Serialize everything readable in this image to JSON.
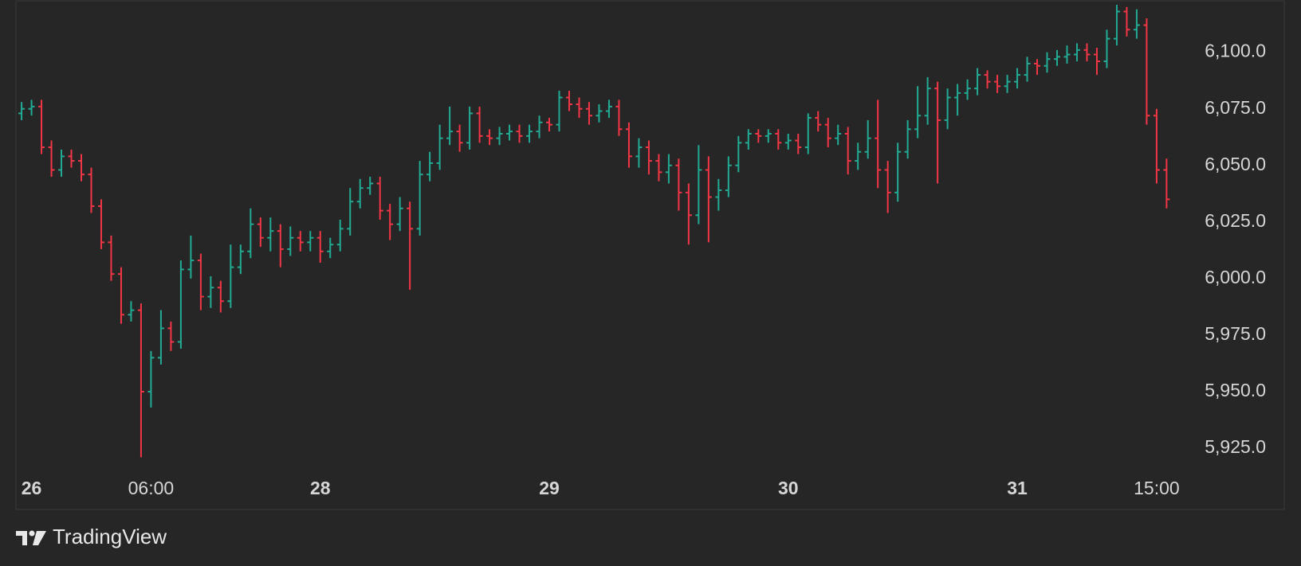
{
  "chart_data": {
    "type": "ohlc",
    "categories": [
      null,
      "26",
      null,
      null,
      null,
      null,
      null,
      null,
      null,
      null,
      null,
      null,
      null,
      "06:00",
      null,
      null,
      null,
      null,
      null,
      null,
      null,
      null,
      null,
      null,
      null,
      null,
      null,
      null,
      null,
      null,
      "28",
      null,
      null,
      null,
      null,
      null,
      null,
      null,
      null,
      null,
      null,
      null,
      null,
      null,
      null,
      null,
      null,
      null,
      null,
      null,
      null,
      null,
      null,
      "29",
      null,
      null,
      null,
      null,
      null,
      null,
      null,
      null,
      null,
      null,
      null,
      null,
      null,
      null,
      null,
      null,
      null,
      null,
      null,
      null,
      null,
      null,
      null,
      "30",
      null,
      null,
      null,
      null,
      null,
      null,
      null,
      null,
      null,
      null,
      null,
      null,
      null,
      null,
      null,
      null,
      null,
      null,
      null,
      null,
      null,
      null,
      "31",
      null,
      null,
      null,
      null,
      null,
      null,
      null,
      null,
      null,
      null,
      null,
      null,
      null,
      "15:00",
      null
    ],
    "open": [
      6073,
      6075,
      6076,
      6058,
      6048,
      6054,
      6052,
      6046,
      6032,
      6016,
      6002,
      5984,
      5986,
      5950,
      5965,
      5978,
      5972,
      6004,
      6008,
      5992,
      5996,
      5990,
      6005,
      6012,
      6024,
      6018,
      6021,
      6013,
      6018,
      6016,
      6018,
      6012,
      6015,
      6022,
      6034,
      6040,
      6042,
      6030,
      6024,
      6031,
      6022,
      6046,
      6051,
      6062,
      6065,
      6060,
      6073,
      6063,
      6062,
      6064,
      6065,
      6063,
      6065,
      6069,
      6068,
      6080,
      6077,
      6075,
      6072,
      6074,
      6076,
      6066,
      6054,
      6058,
      6052,
      6047,
      6050,
      6038,
      6028,
      6048,
      6036,
      6039,
      6050,
      6060,
      6064,
      6063,
      6064,
      6060,
      6061,
      6058,
      6071,
      6068,
      6062,
      6064,
      6052,
      6056,
      6062,
      6048,
      6038,
      6056,
      6066,
      6072,
      6084,
      6070,
      6080,
      6082,
      6084,
      6090,
      6087,
      6085,
      6087,
      6090,
      6095,
      6094,
      6097,
      6098,
      6099,
      6101,
      6099,
      6096,
      6106,
      6118,
      6110,
      6112,
      6072,
      6048
    ],
    "high": [
      6078,
      6079,
      6079,
      6061,
      6057,
      6057,
      6055,
      6049,
      6035,
      6019,
      6005,
      5990,
      5989,
      5968,
      5986,
      5981,
      6008,
      6019,
      6011,
      6001,
      5999,
      6015,
      6015,
      6031,
      6027,
      6027,
      6024,
      6023,
      6021,
      6021,
      6021,
      6018,
      6026,
      6040,
      6044,
      6045,
      6045,
      6033,
      6036,
      6034,
      6052,
      6056,
      6068,
      6076,
      6068,
      6076,
      6076,
      6066,
      6067,
      6068,
      6068,
      6068,
      6072,
      6071,
      6083,
      6083,
      6080,
      6078,
      6077,
      6079,
      6079,
      6069,
      6062,
      6061,
      6055,
      6055,
      6053,
      6042,
      6059,
      6054,
      6044,
      6054,
      6063,
      6066,
      6066,
      6066,
      6066,
      6064,
      6064,
      6073,
      6074,
      6071,
      6068,
      6067,
      6060,
      6070,
      6079,
      6052,
      6060,
      6070,
      6085,
      6089,
      6087,
      6084,
      6086,
      6088,
      6093,
      6092,
      6090,
      6090,
      6093,
      6098,
      6097,
      6100,
      6101,
      6103,
      6104,
      6104,
      6102,
      6110,
      6121,
      6120,
      6119,
      6115,
      6075,
      6053
    ],
    "low": [
      6070,
      6072,
      6055,
      6045,
      6045,
      6049,
      6043,
      6029,
      6013,
      5999,
      5980,
      5981,
      5921,
      5943,
      5962,
      5968,
      5969,
      6000,
      5986,
      5987,
      5985,
      5987,
      6002,
      6009,
      6014,
      6012,
      6005,
      6010,
      6012,
      6012,
      6007,
      6009,
      6012,
      6019,
      6031,
      6037,
      6026,
      6017,
      6021,
      5995,
      6019,
      6043,
      6048,
      6059,
      6056,
      6057,
      6060,
      6059,
      6059,
      6061,
      6060,
      6060,
      6062,
      6065,
      6065,
      6074,
      6071,
      6068,
      6069,
      6071,
      6063,
      6049,
      6049,
      6046,
      6043,
      6042,
      6030,
      6015,
      6024,
      6016,
      6030,
      6036,
      6047,
      6057,
      6060,
      6060,
      6057,
      6057,
      6055,
      6055,
      6065,
      6058,
      6059,
      6046,
      6048,
      6053,
      6040,
      6029,
      6034,
      6053,
      6062,
      6068,
      6042,
      6066,
      6072,
      6079,
      6081,
      6084,
      6082,
      6082,
      6084,
      6087,
      6090,
      6091,
      6094,
      6095,
      6096,
      6096,
      6090,
      6093,
      6103,
      6107,
      6106,
      6068,
      6042,
      6031
    ],
    "close": [
      6075,
      6076,
      6058,
      6048,
      6054,
      6052,
      6046,
      6032,
      6016,
      6002,
      5984,
      5986,
      5950,
      5965,
      5978,
      5972,
      6004,
      6008,
      5992,
      5996,
      5990,
      6005,
      6012,
      6024,
      6018,
      6021,
      6013,
      6018,
      6016,
      6018,
      6012,
      6015,
      6022,
      6034,
      6040,
      6042,
      6030,
      6024,
      6031,
      6022,
      6046,
      6051,
      6062,
      6065,
      6060,
      6073,
      6063,
      6062,
      6064,
      6065,
      6063,
      6065,
      6069,
      6068,
      6080,
      6077,
      6075,
      6072,
      6074,
      6076,
      6066,
      6054,
      6058,
      6052,
      6047,
      6050,
      6038,
      6028,
      6048,
      6036,
      6039,
      6050,
      6060,
      6064,
      6063,
      6064,
      6060,
      6061,
      6058,
      6071,
      6068,
      6062,
      6064,
      6052,
      6056,
      6062,
      6048,
      6038,
      6056,
      6066,
      6072,
      6084,
      6070,
      6080,
      6082,
      6084,
      6090,
      6087,
      6085,
      6087,
      6090,
      6095,
      6094,
      6097,
      6098,
      6099,
      6101,
      6099,
      6096,
      6106,
      6118,
      6110,
      6112,
      6072,
      6048,
      6035
    ],
    "up_color": "#22ab94",
    "down_color": "#f23645",
    "ylim": [
      5912.7,
      6122.4
    ],
    "yticks": [
      {
        "value": 5925,
        "label": "5,925.0"
      },
      {
        "value": 5950,
        "label": "5,950.0"
      },
      {
        "value": 5975,
        "label": "5,975.0"
      },
      {
        "value": 6000,
        "label": "6,000.0"
      },
      {
        "value": 6025,
        "label": "6,025.0"
      },
      {
        "value": 6050,
        "label": "6,050.0"
      },
      {
        "value": 6075,
        "label": "6,075.0"
      },
      {
        "value": 6100,
        "label": "6,100.0"
      }
    ]
  },
  "watermark": "TradingView"
}
